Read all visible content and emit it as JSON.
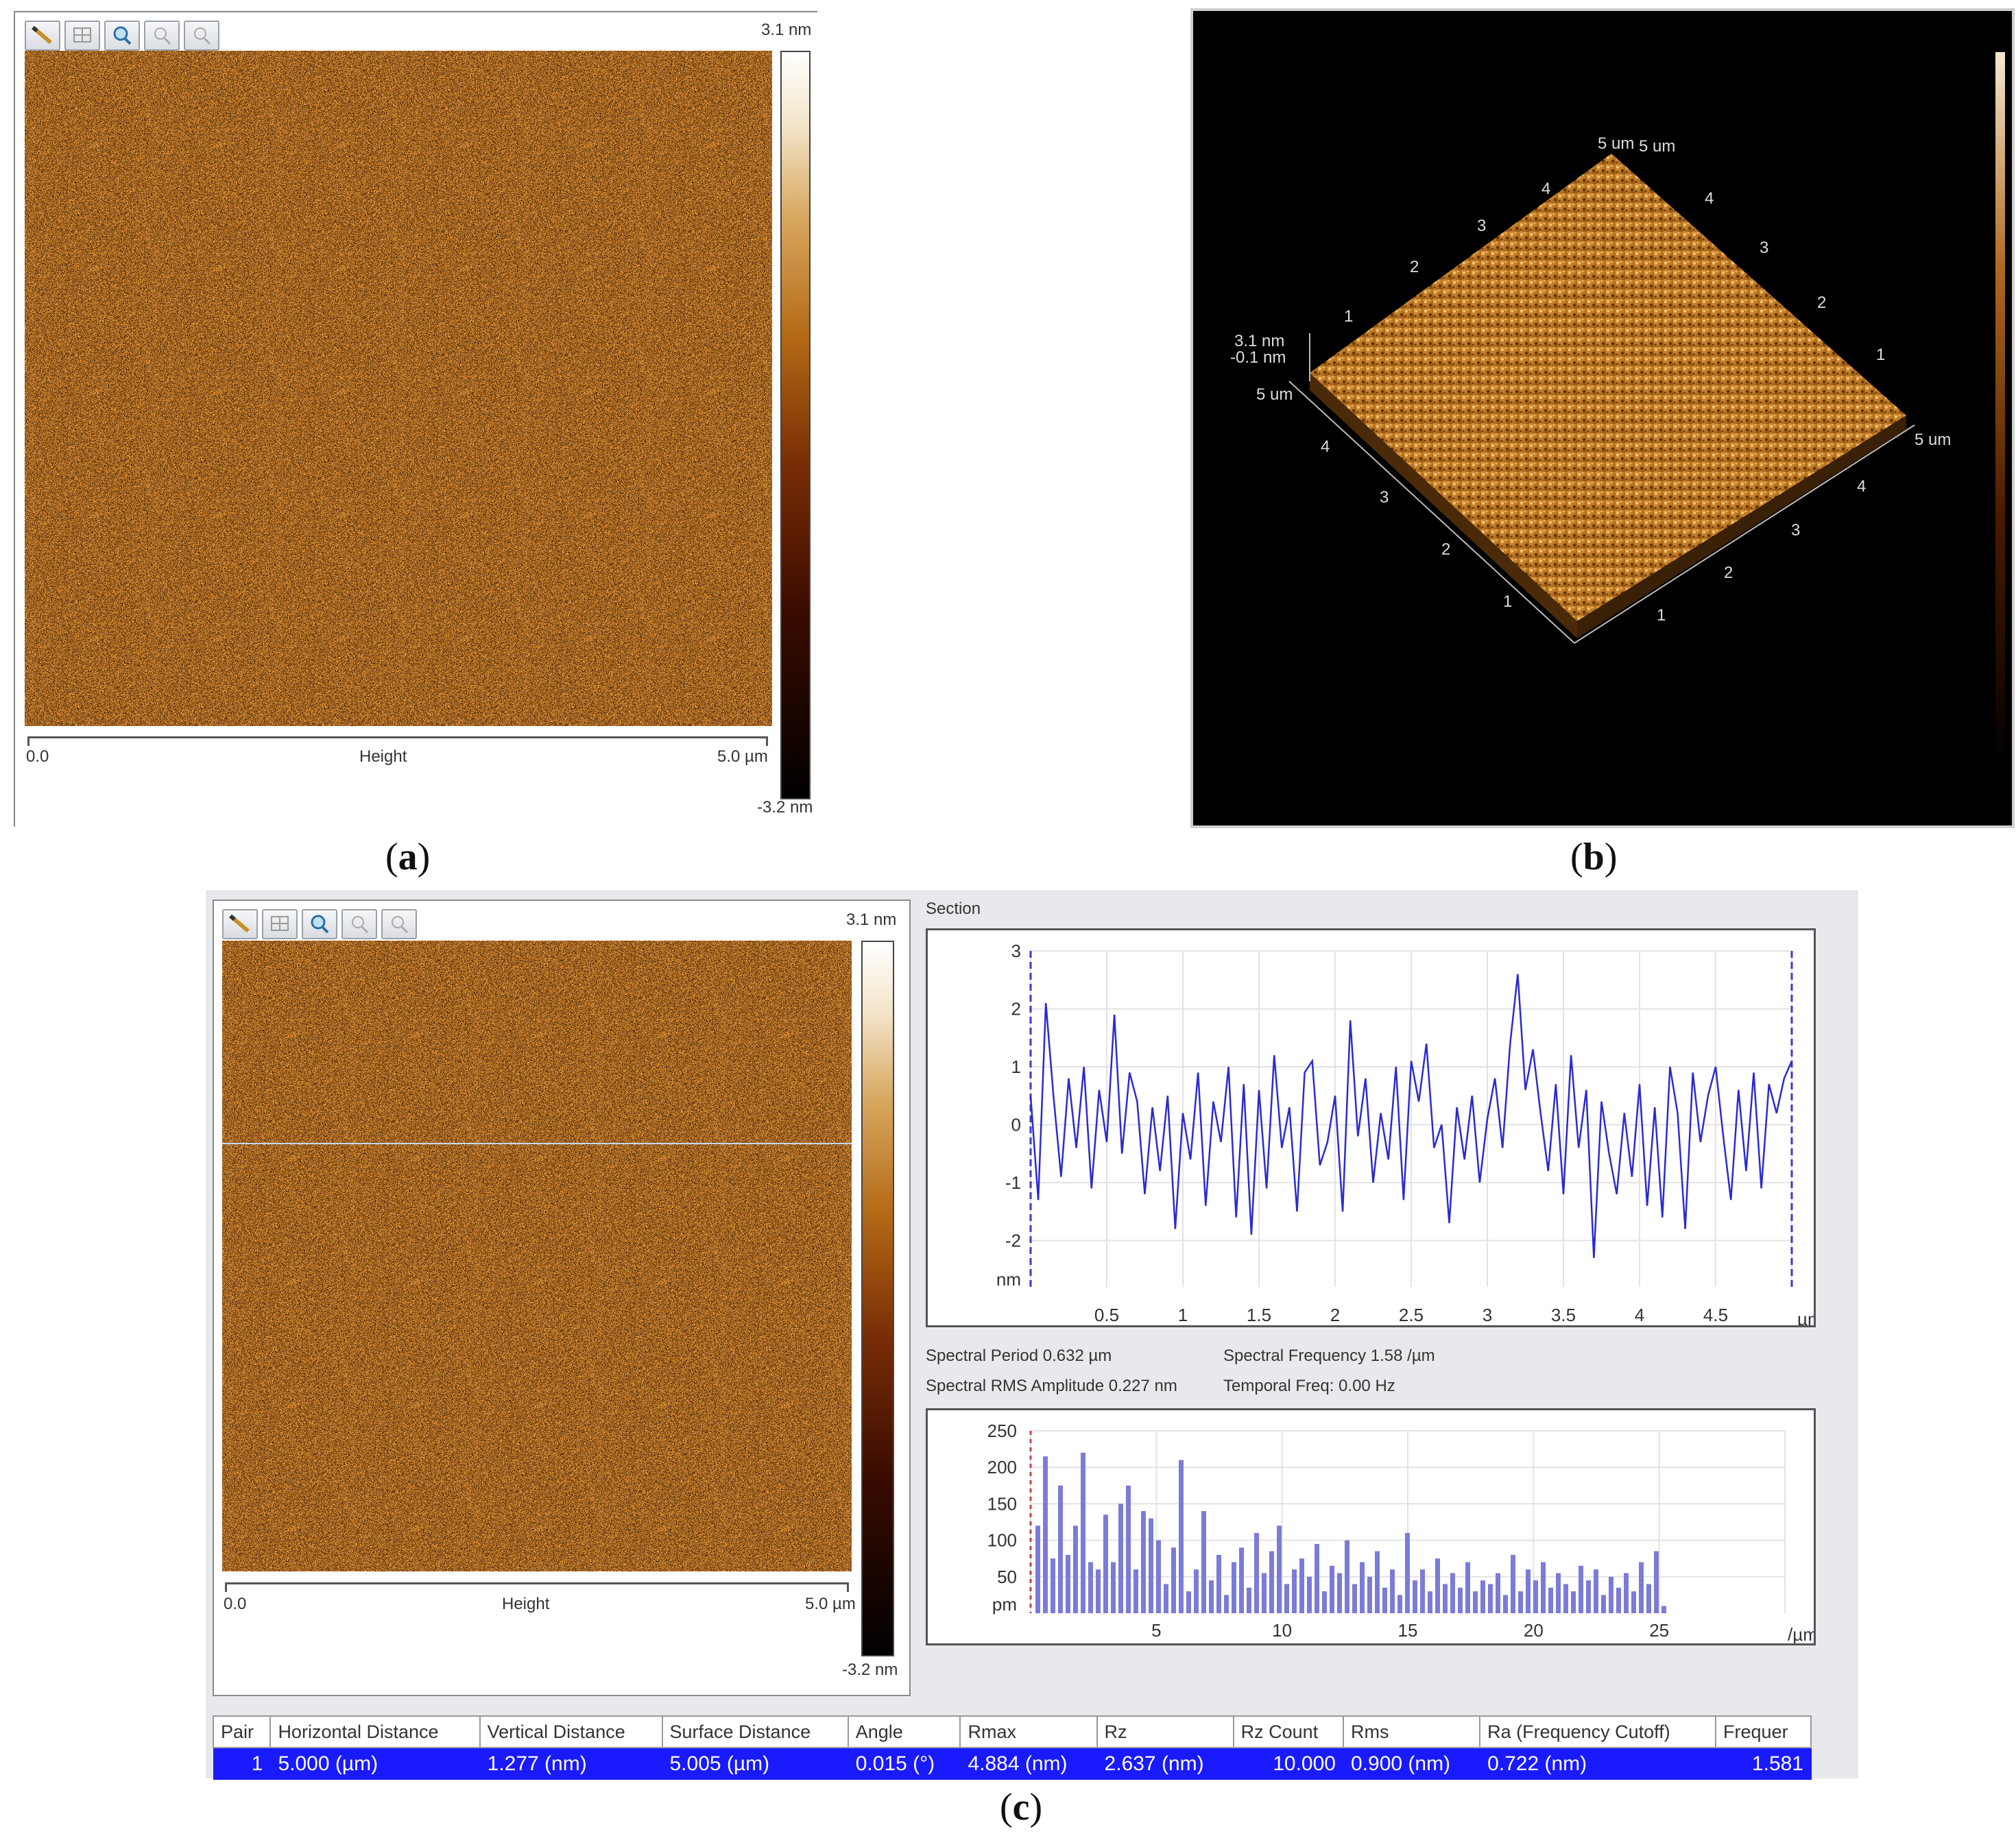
{
  "panel_a": {
    "scale_max": "3.1 nm",
    "scale_min": "-3.2 nm",
    "axis_start": "0.0",
    "axis_label": "Height",
    "axis_end": "5.0 µm",
    "caption_open": "(",
    "caption_letter": "a",
    "caption_close": ")",
    "toolbar": [
      "pencil-icon",
      "grid-icon",
      "zoom-in-icon",
      "zoom-out-icon",
      "zoom-reset-icon"
    ]
  },
  "panel_b": {
    "height_top": "3.1 nm",
    "height_bottom": "-0.1 nm",
    "axis_left_label": "5 um",
    "axis_right_label": "5 um",
    "axis_top_left_label": "5 um",
    "axis_top_right_label": "5 um",
    "ticks_top_left": [
      "1",
      "2",
      "3",
      "4"
    ],
    "ticks_top_right": [
      "1",
      "2",
      "3",
      "4"
    ],
    "ticks_bottom_left": [
      "1",
      "2",
      "3",
      "4"
    ],
    "ticks_bottom_right": [
      "1",
      "2",
      "3",
      "4"
    ],
    "caption_open": "(",
    "caption_letter": "b",
    "caption_close": ")"
  },
  "panel_c": {
    "scale_max": "3.1 nm",
    "scale_min": "-3.2 nm",
    "axis_start": "0.0",
    "axis_label": "Height",
    "axis_end": "5.0 µm",
    "section_title": "Section",
    "spectral_period": "Spectral Period 0.632 µm",
    "spectral_frequency": "Spectral Frequency 1.58 /µm",
    "spectral_rms": "Spectral RMS Amplitude 0.227 nm",
    "temporal_freq": "Temporal Freq: 0.00 Hz",
    "caption_open": "(",
    "caption_letter": "c",
    "caption_close": ")",
    "table": {
      "headers": [
        "Pair",
        "Horizontal Distance",
        "Vertical Distance",
        "Surface Distance",
        "Angle",
        "Rmax",
        "Rz",
        "Rz Count",
        "Rms",
        "Ra (Frequency Cutoff)",
        "Frequer"
      ],
      "row": [
        "1",
        "5.000 (µm)",
        "1.277 (nm)",
        "5.005 (µm)",
        "0.015 (°)",
        "4.884 (nm)",
        "2.637 (nm)",
        "10.000",
        "0.900 (nm)",
        "0.722 (nm)",
        "1.581"
      ]
    }
  },
  "colors": {
    "profile_line": "#2b2bd0",
    "table_row": "#1a1aff",
    "afm_brown": "#7a4a12"
  },
  "chart_data": [
    {
      "type": "line",
      "xlabel": "µm",
      "ylabel": "nm",
      "xlim": [
        0,
        5
      ],
      "ylim": [
        -2.8,
        3
      ],
      "xticks": [
        "0.5",
        "1",
        "1.5",
        "2",
        "2.5",
        "3",
        "3.5",
        "4",
        "4.5"
      ],
      "yticks": [
        "3",
        "2",
        "1",
        "0",
        "-1",
        "-2"
      ],
      "grid": true,
      "series": [
        {
          "x": [
            0.0,
            0.05,
            0.1,
            0.15,
            0.2,
            0.25,
            0.3,
            0.35,
            0.4,
            0.45,
            0.5,
            0.55,
            0.6,
            0.65,
            0.7,
            0.75,
            0.8,
            0.85,
            0.9,
            0.95,
            1.0,
            1.05,
            1.1,
            1.15,
            1.2,
            1.25,
            1.3,
            1.35,
            1.4,
            1.45,
            1.5,
            1.55,
            1.6,
            1.65,
            1.7,
            1.75,
            1.8,
            1.85,
            1.9,
            1.95,
            2.0,
            2.05,
            2.1,
            2.15,
            2.2,
            2.25,
            2.3,
            2.35,
            2.4,
            2.45,
            2.5,
            2.55,
            2.6,
            2.65,
            2.7,
            2.75,
            2.8,
            2.85,
            2.9,
            2.95,
            3.0,
            3.05,
            3.1,
            3.15,
            3.2,
            3.25,
            3.3,
            3.35,
            3.4,
            3.45,
            3.5,
            3.55,
            3.6,
            3.65,
            3.7,
            3.75,
            3.8,
            3.85,
            3.9,
            3.95,
            4.0,
            4.05,
            4.1,
            4.15,
            4.2,
            4.25,
            4.3,
            4.35,
            4.4,
            4.45,
            4.5,
            4.55,
            4.6,
            4.65,
            4.7,
            4.75,
            4.8,
            4.85,
            4.9,
            4.95,
            5.0
          ],
          "y": [
            0.5,
            -1.3,
            2.1,
            0.5,
            -0.9,
            0.8,
            -0.4,
            1.0,
            -1.1,
            0.6,
            -0.3,
            1.9,
            -0.5,
            0.9,
            0.4,
            -1.2,
            0.3,
            -0.8,
            0.5,
            -1.8,
            0.2,
            -0.6,
            0.9,
            -1.4,
            0.4,
            -0.3,
            1.0,
            -1.6,
            0.7,
            -1.9,
            0.6,
            -1.1,
            1.2,
            -0.4,
            0.3,
            -1.5,
            0.9,
            1.1,
            -0.7,
            -0.3,
            0.5,
            -1.5,
            1.8,
            -0.2,
            0.8,
            -1.0,
            0.2,
            -0.6,
            1.0,
            -1.3,
            1.1,
            0.4,
            1.4,
            -0.4,
            0.0,
            -1.7,
            0.3,
            -0.6,
            0.5,
            -1.0,
            0.1,
            0.8,
            -0.4,
            1.4,
            2.6,
            0.6,
            1.3,
            0.2,
            -0.8,
            0.7,
            -1.2,
            1.2,
            -0.4,
            0.6,
            -2.3,
            0.4,
            -0.5,
            -1.2,
            0.2,
            -0.9,
            0.7,
            -1.4,
            0.3,
            -1.6,
            1.0,
            0.2,
            -1.8,
            0.9,
            -0.3,
            0.5,
            1.0,
            -0.2,
            -1.3,
            0.6,
            -0.8,
            0.9,
            -1.1,
            0.7,
            0.2,
            0.8,
            1.1
          ]
        }
      ]
    },
    {
      "type": "bar",
      "xlabel": "/µm",
      "ylabel": "pm",
      "xlim": [
        0,
        30
      ],
      "ylim": [
        0,
        250
      ],
      "xticks": [
        "5",
        "10",
        "15",
        "20",
        "25"
      ],
      "yticks": [
        "250",
        "200",
        "150",
        "100",
        "50"
      ],
      "grid": true,
      "x": [
        0.3,
        0.6,
        0.9,
        1.2,
        1.5,
        1.8,
        2.1,
        2.4,
        2.7,
        3.0,
        3.3,
        3.6,
        3.9,
        4.2,
        4.5,
        4.8,
        5.1,
        5.4,
        5.7,
        6.0,
        6.3,
        6.6,
        6.9,
        7.2,
        7.5,
        7.8,
        8.1,
        8.4,
        8.7,
        9.0,
        9.3,
        9.6,
        9.9,
        10.2,
        10.5,
        10.8,
        11.1,
        11.4,
        11.7,
        12.0,
        12.3,
        12.6,
        12.9,
        13.2,
        13.5,
        13.8,
        14.1,
        14.4,
        14.7,
        15.0,
        15.3,
        15.6,
        15.9,
        16.2,
        16.5,
        16.8,
        17.1,
        17.4,
        17.7,
        18.0,
        18.3,
        18.6,
        18.9,
        19.2,
        19.5,
        19.8,
        20.1,
        20.4,
        20.7,
        21.0,
        21.3,
        21.6,
        21.9,
        22.2,
        22.5,
        22.8,
        23.1,
        23.4,
        23.7,
        24.0,
        24.3,
        24.6,
        24.9,
        25.2
      ],
      "values": [
        120,
        215,
        75,
        175,
        80,
        120,
        220,
        70,
        60,
        135,
        70,
        150,
        175,
        60,
        140,
        130,
        100,
        40,
        90,
        210,
        30,
        60,
        140,
        45,
        80,
        25,
        70,
        90,
        35,
        110,
        55,
        85,
        120,
        40,
        60,
        75,
        50,
        95,
        30,
        65,
        55,
        100,
        40,
        70,
        50,
        85,
        35,
        60,
        25,
        110,
        45,
        60,
        30,
        75,
        40,
        55,
        35,
        70,
        30,
        45,
        40,
        55,
        25,
        80,
        30,
        60,
        45,
        70,
        35,
        55,
        40,
        30,
        65,
        45,
        60,
        25,
        50,
        35,
        55,
        30,
        70,
        40,
        85,
        10
      ]
    }
  ]
}
